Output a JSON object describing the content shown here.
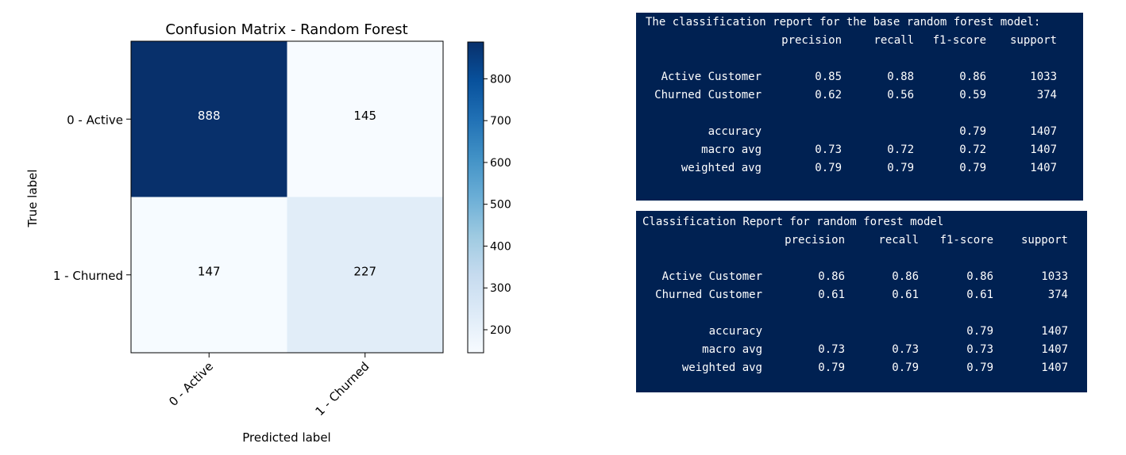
{
  "chart_data": {
    "type": "heatmap",
    "title": "Confusion Matrix - Random Forest",
    "xlabel": "Predicted label",
    "ylabel": "True label",
    "x_categories": [
      "0 - Active",
      "1 - Churned"
    ],
    "y_categories": [
      "0 - Active",
      "1 - Churned"
    ],
    "values": [
      [
        888,
        145
      ],
      [
        147,
        227
      ]
    ],
    "colormap": "Blues",
    "color_range": [
      145,
      888
    ],
    "colorbar_ticks": [
      200,
      300,
      400,
      500,
      600,
      700,
      800
    ],
    "colors": {
      "dark_cell": "#08306b",
      "light_cell": "#f7fbff",
      "mid_cell": "#dfebf7"
    }
  },
  "reports": [
    {
      "heading": "The classification report for the base random forest model:",
      "columns": [
        "precision",
        "recall",
        "f1-score",
        "support"
      ],
      "rows": [
        [
          "Active Customer",
          "0.85",
          "0.88",
          "0.86",
          "1033"
        ],
        [
          "Churned Customer",
          "0.62",
          "0.56",
          "0.59",
          "374"
        ],
        [
          "accuracy",
          "",
          "",
          "0.79",
          "1407"
        ],
        [
          "macro avg",
          "0.73",
          "0.72",
          "0.72",
          "1407"
        ],
        [
          "weighted avg",
          "0.79",
          "0.79",
          "0.79",
          "1407"
        ]
      ]
    },
    {
      "heading": "Classification Report for random forest model",
      "columns": [
        "precision",
        "recall",
        "f1-score",
        "support"
      ],
      "rows": [
        [
          "Active Customer",
          "0.86",
          "0.86",
          "0.86",
          "1033"
        ],
        [
          "Churned Customer",
          "0.61",
          "0.61",
          "0.61",
          "374"
        ],
        [
          "accuracy",
          "",
          "",
          "0.79",
          "1407"
        ],
        [
          "macro avg",
          "0.73",
          "0.73",
          "0.73",
          "1407"
        ],
        [
          "weighted avg",
          "0.79",
          "0.79",
          "0.79",
          "1407"
        ]
      ]
    }
  ]
}
